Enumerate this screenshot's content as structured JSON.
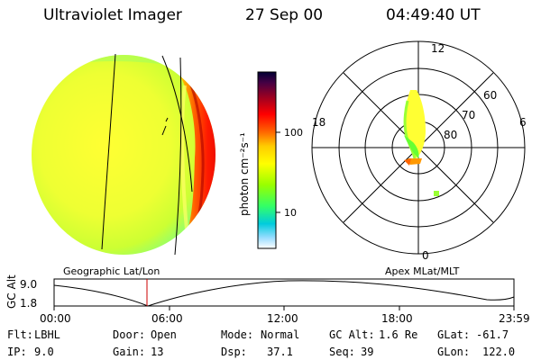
{
  "header": {
    "instrument": "Ultraviolet Imager",
    "date": "27 Sep 00",
    "time": "04:49:40 UT"
  },
  "colorbar": {
    "unit_label": "photon cm⁻²s⁻¹",
    "ticks": [
      "100",
      "10"
    ],
    "colors": [
      "#000033",
      "#330044",
      "#660033",
      "#990022",
      "#cc0000",
      "#ff0000",
      "#ff3300",
      "#ff6600",
      "#ff9900",
      "#ffcc00",
      "#ffff00",
      "#ccff00",
      "#99ff00",
      "#66ff33",
      "#33ff66",
      "#00ffaa",
      "#00ccdd",
      "#33ccff",
      "#99ddff",
      "#ffffff"
    ]
  },
  "polar_plot": {
    "mlt_labels": {
      "top": "12",
      "bottom": "0",
      "left": "18",
      "right": "6"
    },
    "lat_labels": [
      "60",
      "70",
      "80"
    ]
  },
  "map_labels": {
    "left": "Geographic Lat/Lon",
    "right": "Apex MLat/MLT"
  },
  "altitude_plot": {
    "axis_title": "GC Alt",
    "y_ticks": [
      "9.0",
      "1.8"
    ],
    "x_ticks": [
      "00:00",
      "06:00",
      "12:00",
      "18:00",
      "23:59"
    ]
  },
  "status": {
    "row1": {
      "flt_label": "Flt:",
      "flt_value": "LBHL",
      "door_label": "Door:",
      "door_value": "Open",
      "mode_label": "Mode:",
      "mode_value": "Normal",
      "gcalt_label": "GC Alt:",
      "gcalt_value": "1.6 Re",
      "glat_label": "GLat:",
      "glat_value": "-61.7"
    },
    "row2": {
      "ip_label": "IP:",
      "ip_value": "9.0",
      "gain_label": "Gain:",
      "gain_value": "13",
      "dsp_label": "Dsp:",
      "dsp_value": "37.1",
      "seq_label": "Seq:",
      "seq_value": "39",
      "glon_label": "GLon:",
      "glon_value": "122.0"
    }
  }
}
